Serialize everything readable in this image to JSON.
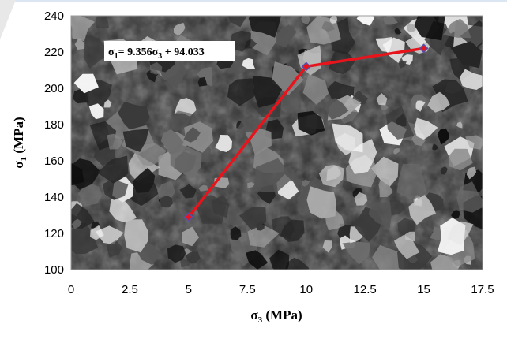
{
  "chart_data": {
    "type": "line",
    "background": "photomicrograph",
    "xlabel": {
      "main": "σ",
      "sub": "3",
      "unit": " (MPa)"
    },
    "ylabel": {
      "main": "σ",
      "sub": "1",
      "unit": " (MPa)"
    },
    "xlim": [
      0,
      17.5
    ],
    "ylim": [
      100,
      240
    ],
    "x_ticks": [
      "0",
      "2.5",
      "5",
      "7.5",
      "10",
      "12.5",
      "15",
      "17.5"
    ],
    "y_ticks": [
      "100",
      "120",
      "140",
      "160",
      "180",
      "200",
      "220",
      "240"
    ],
    "series": [
      {
        "x": [
          5,
          10,
          15
        ],
        "y": [
          129,
          212,
          222
        ],
        "line_color": "#e8141c",
        "marker_color": "#5a4fa8"
      }
    ],
    "annotation": {
      "p1": "σ",
      "p2": "1",
      "p3": "= 9.356σ",
      "p4": "3",
      "p5": " + 94.033"
    },
    "grid": false,
    "legend": "none"
  }
}
